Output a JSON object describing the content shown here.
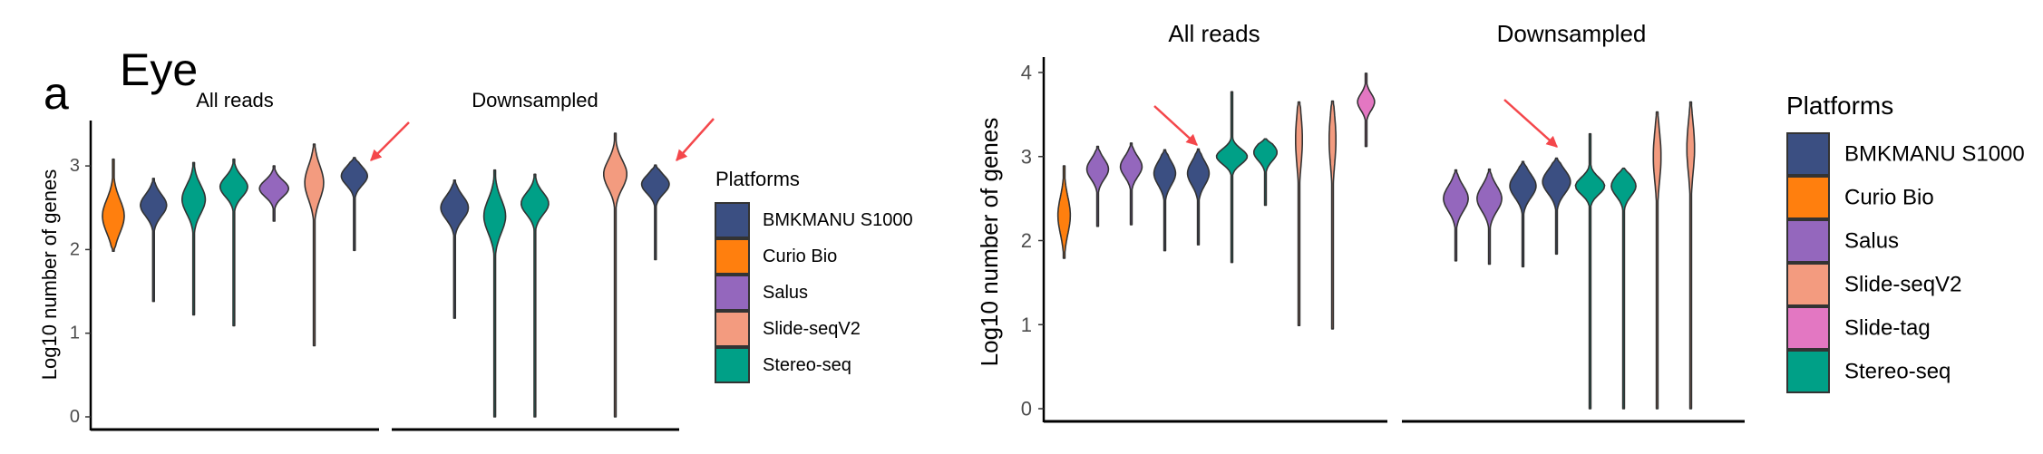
{
  "colors": {
    "BMKMANU S1000": "#3B4F82",
    "Curio Bio": "#FF7F0E",
    "Salus": "#9467BD",
    "Slide-seqV2": "#F39B7F",
    "Slide-tag": "#E377C2",
    "Stereo-seq": "#00A087",
    "arrow": "#F4474B"
  },
  "chart_data": [
    {
      "type": "violin",
      "panel_label": "a",
      "title": "Eye",
      "ylabel": "Log10 number of genes",
      "yticks": [
        0,
        1,
        2,
        3
      ],
      "grid": false,
      "legend": {
        "title": "Platforms",
        "placement": "right",
        "items": [
          "BMKMANU S1000",
          "Curio Bio",
          "Salus",
          "Slide-seqV2",
          "Stereo-seq"
        ]
      },
      "facets": [
        {
          "label": "All reads",
          "violins": [
            {
              "slot": 0,
              "platform": "Curio Bio",
              "min": 1.98,
              "max": 3.08,
              "mode": 2.4,
              "sd": 0.2,
              "rel_width": 0.75
            },
            {
              "slot": 1,
              "platform": "BMKMANU S1000",
              "min": 1.38,
              "max": 2.85,
              "mode": 2.53,
              "sd": 0.13,
              "rel_width": 0.9
            },
            {
              "slot": 2,
              "platform": "Stereo-seq",
              "min": 1.22,
              "max": 3.04,
              "mode": 2.6,
              "sd": 0.17,
              "rel_width": 0.8
            },
            {
              "slot": 3,
              "platform": "Stereo-seq",
              "min": 1.09,
              "max": 3.08,
              "mode": 2.75,
              "sd": 0.12,
              "rel_width": 0.95
            },
            {
              "slot": 4,
              "platform": "Salus",
              "min": 2.34,
              "max": 3.0,
              "mode": 2.73,
              "sd": 0.1,
              "rel_width": 1.0
            },
            {
              "slot": 5,
              "platform": "Slide-seqV2",
              "min": 0.85,
              "max": 3.26,
              "mode": 2.8,
              "sd": 0.2,
              "rel_width": 0.65
            },
            {
              "slot": 6,
              "platform": "BMKMANU S1000",
              "min": 1.99,
              "max": 3.1,
              "mode": 2.88,
              "sd": 0.11,
              "rel_width": 0.9
            }
          ]
        },
        {
          "label": "Downsampled",
          "violins": [
            {
              "slot": 1,
              "platform": "BMKMANU S1000",
              "min": 1.18,
              "max": 2.83,
              "mode": 2.5,
              "sd": 0.14,
              "rel_width": 0.95
            },
            {
              "slot": 2,
              "platform": "Stereo-seq",
              "min": 0,
              "max": 2.95,
              "mode": 2.4,
              "sd": 0.2,
              "rel_width": 0.75
            },
            {
              "slot": 3,
              "platform": "Stereo-seq",
              "min": 0,
              "max": 2.9,
              "mode": 2.55,
              "sd": 0.13,
              "rel_width": 0.95
            },
            {
              "slot": 5,
              "platform": "Slide-seqV2",
              "min": 0,
              "max": 3.39,
              "mode": 2.9,
              "sd": 0.17,
              "rel_width": 0.8
            },
            {
              "slot": 6,
              "platform": "BMKMANU S1000",
              "min": 1.88,
              "max": 3.01,
              "mode": 2.78,
              "sd": 0.11,
              "rel_width": 0.95
            }
          ]
        }
      ]
    },
    {
      "type": "violin",
      "ylabel": "Log10 number of genes",
      "yticks": [
        0,
        1,
        2,
        3,
        4
      ],
      "grid": false,
      "legend": {
        "title": "Platforms",
        "placement": "right",
        "items": [
          "BMKMANU S1000",
          "Curio Bio",
          "Salus",
          "Slide-seqV2",
          "Slide-tag",
          "Stereo-seq"
        ]
      },
      "facets": [
        {
          "label": "All reads",
          "violins": [
            {
              "slot": 0,
              "platform": "Curio Bio",
              "min": 1.79,
              "max": 2.89,
              "mode": 2.3,
              "sd": 0.22,
              "rel_width": 0.4
            },
            {
              "slot": 1,
              "platform": "Salus",
              "min": 2.17,
              "max": 3.12,
              "mode": 2.85,
              "sd": 0.12,
              "rel_width": 0.7
            },
            {
              "slot": 2,
              "platform": "Salus",
              "min": 2.19,
              "max": 3.16,
              "mode": 2.88,
              "sd": 0.12,
              "rel_width": 0.7
            },
            {
              "slot": 3,
              "platform": "BMKMANU S1000",
              "min": 1.88,
              "max": 3.08,
              "mode": 2.8,
              "sd": 0.14,
              "rel_width": 0.7
            },
            {
              "slot": 4,
              "platform": "BMKMANU S1000",
              "min": 1.95,
              "max": 3.09,
              "mode": 2.8,
              "sd": 0.14,
              "rel_width": 0.7
            },
            {
              "slot": 5,
              "platform": "Stereo-seq",
              "min": 1.74,
              "max": 3.77,
              "mode": 3.0,
              "sd": 0.09,
              "rel_width": 1.0
            },
            {
              "slot": 6,
              "platform": "Stereo-seq",
              "min": 2.42,
              "max": 3.21,
              "mode": 3.05,
              "sd": 0.1,
              "rel_width": 0.75
            },
            {
              "slot": 7,
              "platform": "Slide-seqV2",
              "min": 0.99,
              "max": 3.65,
              "mode": 3.2,
              "sd": 0.3,
              "rel_width": 0.22
            },
            {
              "slot": 8,
              "platform": "Slide-seqV2",
              "min": 0.95,
              "max": 3.66,
              "mode": 3.2,
              "sd": 0.3,
              "rel_width": 0.22
            },
            {
              "slot": 9,
              "platform": "Slide-tag",
              "min": 3.12,
              "max": 3.99,
              "mode": 3.65,
              "sd": 0.1,
              "rel_width": 0.55
            }
          ]
        },
        {
          "label": "Downsampled",
          "violins": [
            {
              "slot": 1,
              "platform": "Salus",
              "min": 1.76,
              "max": 2.84,
              "mode": 2.5,
              "sd": 0.15,
              "rel_width": 0.8
            },
            {
              "slot": 2,
              "platform": "Salus",
              "min": 1.72,
              "max": 2.85,
              "mode": 2.5,
              "sd": 0.15,
              "rel_width": 0.8
            },
            {
              "slot": 3,
              "platform": "BMKMANU S1000",
              "min": 1.69,
              "max": 2.94,
              "mode": 2.65,
              "sd": 0.14,
              "rel_width": 0.85
            },
            {
              "slot": 4,
              "platform": "BMKMANU S1000",
              "min": 1.84,
              "max": 2.98,
              "mode": 2.7,
              "sd": 0.14,
              "rel_width": 0.9
            },
            {
              "slot": 5,
              "platform": "Stereo-seq",
              "min": 0,
              "max": 3.27,
              "mode": 2.65,
              "sd": 0.1,
              "rel_width": 0.95
            },
            {
              "slot": 6,
              "platform": "Stereo-seq",
              "min": 0,
              "max": 2.86,
              "mode": 2.65,
              "sd": 0.12,
              "rel_width": 0.8
            },
            {
              "slot": 7,
              "platform": "Slide-seqV2",
              "min": 0,
              "max": 3.53,
              "mode": 3.0,
              "sd": 0.3,
              "rel_width": 0.25
            },
            {
              "slot": 8,
              "platform": "Slide-seqV2",
              "min": 0,
              "max": 3.65,
              "mode": 3.1,
              "sd": 0.3,
              "rel_width": 0.25
            }
          ]
        }
      ]
    }
  ]
}
